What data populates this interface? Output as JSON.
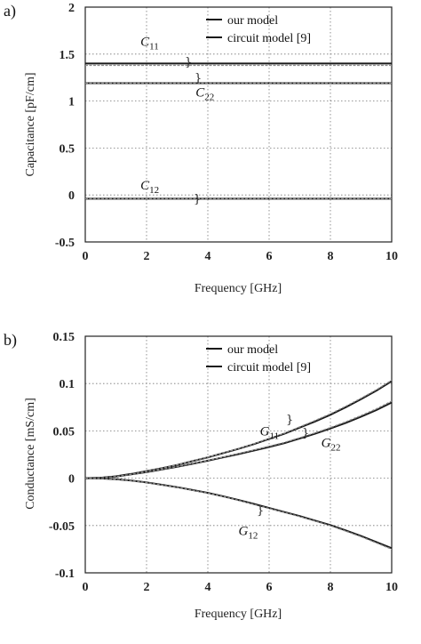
{
  "colors": {
    "line": "#1a1a1a",
    "circuit": "#8a8a8a",
    "grid": "#777777"
  },
  "chart_data": [
    {
      "type": "line",
      "panel_label": "a)",
      "xlabel": "Frequency [GHz]",
      "ylabel": "Capacitance [pF/cm]",
      "xlim": [
        0,
        10
      ],
      "ylim": [
        -0.5,
        2
      ],
      "xticks": [
        0,
        2,
        4,
        6,
        8,
        10
      ],
      "yticks": [
        -0.5,
        0,
        0.5,
        1,
        1.5,
        2
      ],
      "xtick_labels": [
        "0",
        "2",
        "4",
        "6",
        "8",
        "10"
      ],
      "ytick_labels": [
        "-0.5",
        "0",
        "0.5",
        "1",
        "1.5",
        "2"
      ],
      "grid": true,
      "legend_position": "top-right",
      "legend": [
        "our model",
        "circuit model [9]"
      ],
      "x": [
        0,
        1,
        2,
        3,
        4,
        5,
        6,
        7,
        8,
        9,
        10
      ],
      "series": [
        {
          "model": "our model",
          "curve": "C11",
          "values": [
            1.4,
            1.4,
            1.4,
            1.4,
            1.4,
            1.4,
            1.4,
            1.4,
            1.4,
            1.4,
            1.4
          ]
        },
        {
          "model": "circuit model [9]",
          "curve": "C11",
          "values": [
            1.38,
            1.38,
            1.38,
            1.38,
            1.38,
            1.38,
            1.38,
            1.38,
            1.38,
            1.38,
            1.38
          ]
        },
        {
          "model": "our model",
          "curve": "C22",
          "values": [
            1.19,
            1.19,
            1.19,
            1.19,
            1.19,
            1.19,
            1.19,
            1.19,
            1.19,
            1.19,
            1.19
          ]
        },
        {
          "model": "circuit model [9]",
          "curve": "C22",
          "values": [
            1.19,
            1.19,
            1.19,
            1.19,
            1.19,
            1.19,
            1.19,
            1.19,
            1.19,
            1.19,
            1.19
          ]
        },
        {
          "model": "our model",
          "curve": "C12",
          "values": [
            -0.04,
            -0.04,
            -0.04,
            -0.04,
            -0.04,
            -0.04,
            -0.04,
            -0.04,
            -0.04,
            -0.04,
            -0.04
          ]
        },
        {
          "model": "circuit model [9]",
          "curve": "C12",
          "values": [
            -0.04,
            -0.04,
            -0.04,
            -0.04,
            -0.04,
            -0.04,
            -0.04,
            -0.04,
            -0.04,
            -0.04,
            -0.04
          ]
        }
      ],
      "annotations": [
        {
          "base": "C",
          "sub": "11",
          "x": 1.8,
          "y": 1.59
        },
        {
          "base": "C",
          "sub": "22",
          "x": 3.6,
          "y": 1.05
        },
        {
          "base": "C",
          "sub": "12",
          "x": 1.8,
          "y": 0.06
        }
      ]
    },
    {
      "type": "line",
      "panel_label": "b)",
      "xlabel": "Frequency [GHz]",
      "ylabel": "Conductance [mS/cm]",
      "xlim": [
        0,
        10
      ],
      "ylim": [
        -0.1,
        0.15
      ],
      "xticks": [
        0,
        2,
        4,
        6,
        8,
        10
      ],
      "yticks": [
        -0.1,
        -0.05,
        0,
        0.05,
        0.1,
        0.15
      ],
      "xtick_labels": [
        "0",
        "2",
        "4",
        "6",
        "8",
        "10"
      ],
      "ytick_labels": [
        "-0.1",
        "-0.05",
        "0",
        "0.05",
        "0.1",
        "0.15"
      ],
      "grid": true,
      "legend_position": "top-right",
      "legend": [
        "our model",
        "circuit model [9]"
      ],
      "x": [
        0,
        0.5,
        1,
        1.5,
        2,
        2.5,
        3,
        3.5,
        4,
        4.5,
        5,
        5.5,
        6,
        6.5,
        7,
        7.5,
        8,
        8.5,
        9,
        9.5,
        10
      ],
      "series": [
        {
          "model": "our model",
          "curve": "G11",
          "values": [
            0,
            0.0005,
            0.002,
            0.0045,
            0.0075,
            0.0105,
            0.014,
            0.018,
            0.022,
            0.0265,
            0.031,
            0.036,
            0.0415,
            0.047,
            0.0535,
            0.06,
            0.067,
            0.075,
            0.0835,
            0.0925,
            0.1025
          ]
        },
        {
          "model": "circuit model [9]",
          "curve": "G11",
          "values": [
            0,
            0.0005,
            0.002,
            0.0045,
            0.0075,
            0.0105,
            0.0142,
            0.0182,
            0.0222,
            0.0268,
            0.0313,
            0.0364,
            0.042,
            0.0476,
            0.0542,
            0.061,
            0.068,
            0.076,
            0.0845,
            0.0935,
            0.1035
          ]
        },
        {
          "model": "our model",
          "curve": "G22",
          "values": [
            0,
            0.0004,
            0.0018,
            0.004,
            0.0065,
            0.0092,
            0.012,
            0.0152,
            0.0185,
            0.022,
            0.0255,
            0.0292,
            0.033,
            0.037,
            0.042,
            0.047,
            0.0525,
            0.0585,
            0.065,
            0.072,
            0.08
          ]
        },
        {
          "model": "circuit model [9]",
          "curve": "G22",
          "values": [
            0,
            0.0004,
            0.0018,
            0.004,
            0.0066,
            0.0094,
            0.0122,
            0.0155,
            0.0188,
            0.0224,
            0.026,
            0.0298,
            0.0337,
            0.0378,
            0.0428,
            0.0479,
            0.0535,
            0.0596,
            0.0662,
            0.0733,
            0.0815
          ]
        },
        {
          "model": "our model",
          "curve": "G12",
          "values": [
            0,
            -0.0003,
            -0.001,
            -0.0025,
            -0.0045,
            -0.007,
            -0.0095,
            -0.0125,
            -0.0155,
            -0.0192,
            -0.023,
            -0.0272,
            -0.0315,
            -0.0358,
            -0.04,
            -0.0448,
            -0.0495,
            -0.0552,
            -0.061,
            -0.0675,
            -0.074
          ]
        },
        {
          "model": "circuit model [9]",
          "curve": "G12",
          "values": [
            0,
            -0.0003,
            -0.001,
            -0.0026,
            -0.0046,
            -0.0071,
            -0.0097,
            -0.0127,
            -0.0158,
            -0.0195,
            -0.0234,
            -0.0277,
            -0.032,
            -0.0363,
            -0.0406,
            -0.0454,
            -0.0502,
            -0.0559,
            -0.0618,
            -0.0684,
            -0.075
          ]
        }
      ],
      "annotations": [
        {
          "base": "G",
          "sub": "11",
          "x": 5.7,
          "y": 0.045
        },
        {
          "base": "G",
          "sub": "22",
          "x": 7.7,
          "y": 0.033
        },
        {
          "base": "G",
          "sub": "12",
          "x": 5.0,
          "y": -0.06
        }
      ]
    }
  ]
}
